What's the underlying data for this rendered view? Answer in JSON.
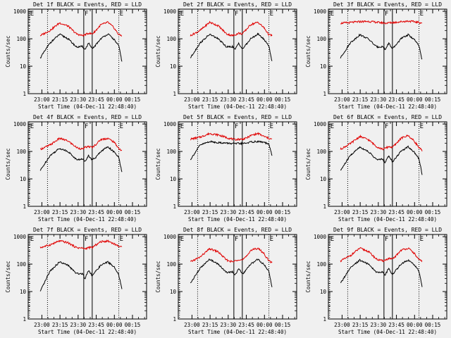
{
  "colors": {
    "background": "#f0f0f0",
    "axes": "#000000",
    "events": "#000000",
    "lld": "#e00000"
  },
  "shared": {
    "ylabel": "Counts/sec",
    "xlabel": "Start Time (04-Dec-11 22:48:40)",
    "x_tick_labels": [
      "23:00",
      "23:15",
      "23:30",
      "23:45",
      "00:00",
      "00:15"
    ],
    "x_tick_minutes": [
      11.33,
      26.33,
      41.33,
      56.33,
      71.33,
      86.33
    ],
    "y_tick_labels": [
      "1",
      "10",
      "100",
      "1000"
    ],
    "y_tick_values": [
      1,
      10,
      100,
      1000
    ],
    "xlim_minutes": [
      0,
      98
    ],
    "ylim": [
      1,
      1200
    ],
    "y_scale": "log",
    "series_names": [
      "BLACK = Events",
      "RED = LLD"
    ],
    "vertical_markers": [
      {
        "label": "E",
        "minute": 1,
        "style": "dotted"
      },
      {
        "label": "",
        "minute": 16,
        "style": "dotted"
      },
      {
        "label": "F",
        "minute": 46,
        "style": "solid"
      },
      {
        "label": "",
        "minute": 53,
        "style": "solid"
      },
      {
        "label": "E",
        "minute": 75,
        "style": "dotted"
      }
    ]
  },
  "chart_data": [
    {
      "type": "line",
      "title": "Det 1f BLACK = Events, RED = LLD",
      "x_minutes": [
        10,
        18,
        26,
        33,
        40,
        45,
        47,
        50,
        53,
        56,
        60,
        66,
        71,
        75,
        78
      ],
      "events": [
        20,
        70,
        145,
        100,
        50,
        52,
        40,
        70,
        42,
        60,
        100,
        150,
        95,
        55,
        12
      ],
      "lld": [
        130,
        200,
        380,
        290,
        150,
        130,
        140,
        160,
        150,
        200,
        320,
        400,
        250,
        140,
        130
      ]
    },
    {
      "type": "line",
      "title": "Det 2f BLACK = Events, RED = LLD",
      "x_minutes": [
        10,
        18,
        26,
        33,
        40,
        45,
        47,
        50,
        53,
        56,
        60,
        66,
        71,
        75,
        78
      ],
      "events": [
        20,
        70,
        145,
        100,
        50,
        52,
        40,
        70,
        42,
        60,
        100,
        150,
        95,
        55,
        12
      ],
      "lld": [
        130,
        200,
        400,
        300,
        150,
        130,
        140,
        160,
        150,
        210,
        330,
        400,
        250,
        140,
        130
      ]
    },
    {
      "type": "line",
      "title": "Det 3f BLACK = Events, RED = LLD",
      "x_minutes": [
        10,
        18,
        26,
        33,
        40,
        45,
        47,
        50,
        53,
        56,
        60,
        66,
        71,
        75,
        78
      ],
      "events": [
        20,
        70,
        140,
        100,
        50,
        52,
        40,
        70,
        42,
        60,
        100,
        140,
        95,
        55,
        14
      ],
      "lld": [
        370,
        390,
        420,
        430,
        400,
        380,
        370,
        380,
        390,
        400,
        420,
        440,
        420,
        390,
        380
      ]
    },
    {
      "type": "line",
      "title": "Det 4f BLACK = Events, RED = LLD",
      "x_minutes": [
        10,
        18,
        26,
        33,
        40,
        45,
        47,
        50,
        53,
        56,
        60,
        66,
        71,
        75,
        78
      ],
      "events": [
        20,
        70,
        130,
        100,
        50,
        52,
        45,
        70,
        50,
        60,
        100,
        150,
        95,
        60,
        14
      ],
      "lld": [
        120,
        170,
        300,
        240,
        140,
        120,
        140,
        150,
        140,
        180,
        270,
        300,
        220,
        130,
        100
      ]
    },
    {
      "type": "line",
      "title": "Det 5f BLACK = Events, RED = LLD",
      "x_minutes": [
        10,
        18,
        26,
        33,
        40,
        45,
        47,
        50,
        53,
        56,
        60,
        66,
        71,
        75,
        78
      ],
      "events": [
        50,
        170,
        230,
        210,
        200,
        195,
        190,
        195,
        195,
        200,
        220,
        230,
        215,
        180,
        60
      ],
      "lld": [
        280,
        330,
        450,
        400,
        320,
        280,
        270,
        280,
        280,
        300,
        380,
        450,
        350,
        300,
        270
      ]
    },
    {
      "type": "line",
      "title": "Det 6f BLACK = Events, RED = LLD",
      "x_minutes": [
        10,
        18,
        26,
        33,
        40,
        45,
        47,
        50,
        53,
        56,
        60,
        66,
        71,
        75,
        78
      ],
      "events": [
        20,
        70,
        145,
        100,
        50,
        52,
        40,
        70,
        42,
        60,
        100,
        150,
        95,
        55,
        12
      ],
      "lld": [
        120,
        190,
        350,
        270,
        150,
        120,
        130,
        150,
        140,
        190,
        300,
        380,
        240,
        140,
        100
      ]
    },
    {
      "type": "line",
      "title": "Det 7f BLACK = Events, RED = LLD",
      "x_minutes": [
        10,
        18,
        26,
        33,
        40,
        45,
        47,
        50,
        53,
        56,
        60,
        66,
        71,
        75,
        78
      ],
      "events": [
        10,
        55,
        120,
        90,
        45,
        45,
        30,
        60,
        38,
        55,
        90,
        120,
        80,
        40,
        10
      ],
      "lld": [
        400,
        500,
        700,
        600,
        400,
        380,
        360,
        400,
        400,
        500,
        650,
        700,
        550,
        450,
        400
      ]
    },
    {
      "type": "line",
      "title": "Det 8f BLACK = Events, RED = LLD",
      "x_minutes": [
        10,
        18,
        26,
        33,
        40,
        45,
        47,
        50,
        53,
        56,
        60,
        66,
        71,
        75,
        78
      ],
      "events": [
        20,
        70,
        150,
        100,
        50,
        52,
        40,
        70,
        42,
        60,
        100,
        150,
        95,
        55,
        12
      ],
      "lld": [
        120,
        180,
        360,
        280,
        140,
        120,
        130,
        150,
        140,
        180,
        320,
        380,
        240,
        130,
        110
      ]
    },
    {
      "type": "line",
      "title": "Det 9f BLACK = Events, RED = LLD",
      "x_minutes": [
        10,
        18,
        26,
        33,
        40,
        45,
        47,
        50,
        53,
        56,
        60,
        66,
        71,
        75,
        78
      ],
      "events": [
        20,
        70,
        140,
        100,
        50,
        52,
        40,
        70,
        42,
        60,
        100,
        140,
        95,
        55,
        12
      ],
      "lld": [
        130,
        200,
        380,
        290,
        150,
        130,
        140,
        160,
        150,
        200,
        320,
        380,
        250,
        140,
        130
      ]
    }
  ]
}
